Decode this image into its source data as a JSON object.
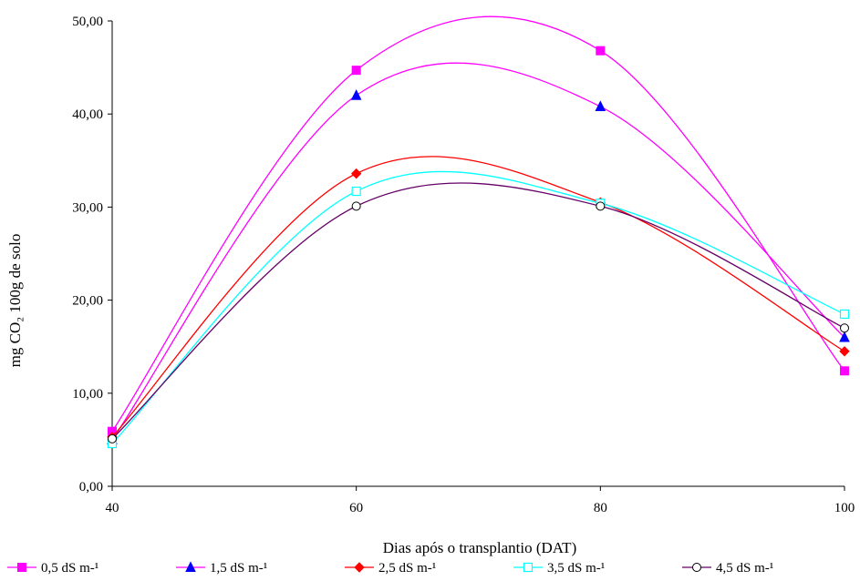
{
  "chart_data": {
    "type": "line",
    "xlabel": "Dias após o transplantio (DAT)",
    "ylabel": "mg CO₂ 100g de solo",
    "x": [
      40,
      60,
      80,
      100
    ],
    "x_ticks": [
      "40",
      "60",
      "80",
      "100"
    ],
    "y_ticks": [
      "0,00",
      "10,00",
      "20,00",
      "30,00",
      "40,00",
      "50,00"
    ],
    "xlim": [
      40,
      100
    ],
    "ylim": [
      0,
      50
    ],
    "grid": false,
    "legend_position": "bottom",
    "series": [
      {
        "name": "0,5 dS m-¹",
        "values": [
          5.9,
          44.7,
          46.8,
          12.4
        ],
        "color": "#ff00ff",
        "marker": "square-filled"
      },
      {
        "name": "1,5 dS m-¹",
        "values": [
          5.0,
          42.0,
          40.8,
          16.0
        ],
        "color": "#0000ff",
        "line_color": "#ff00ff",
        "marker": "triangle-filled"
      },
      {
        "name": "2,5 dS m-¹",
        "values": [
          5.3,
          33.6,
          30.5,
          14.5
        ],
        "color": "#ff0000",
        "marker": "diamond-filled"
      },
      {
        "name": "3,5 dS m-¹",
        "values": [
          4.6,
          31.7,
          30.4,
          18.5
        ],
        "color": "#00ffff",
        "marker": "square-open"
      },
      {
        "name": "4,5 dS m-¹",
        "values": [
          5.1,
          30.1,
          30.1,
          17.0
        ],
        "color": "#660066",
        "marker": "circle-open"
      }
    ]
  }
}
